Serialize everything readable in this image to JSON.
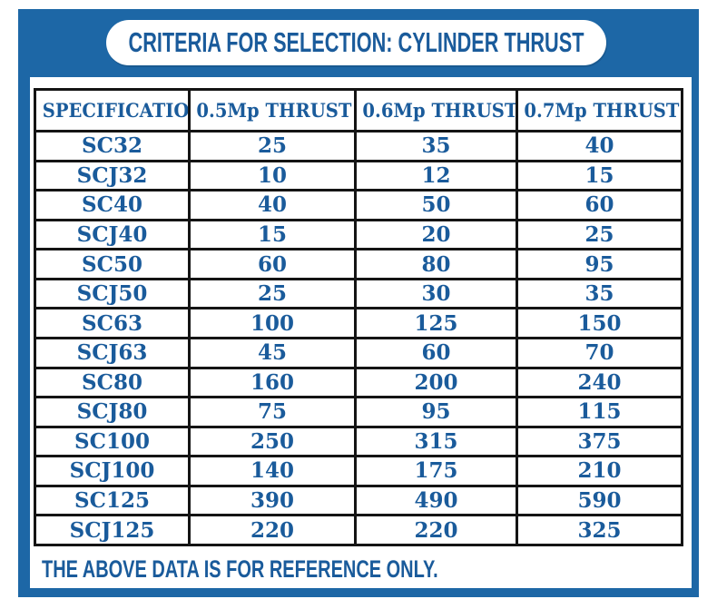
{
  "header": {
    "title": "CRITERIA FOR SELECTION: CYLINDER THRUST"
  },
  "table": {
    "headers": [
      "SPECIFICATION",
      "0.5Mp THRUST",
      "0.6Mp THRUST",
      "0.7Mp THRUST"
    ],
    "rows": [
      [
        "SC32",
        "25",
        "35",
        "40"
      ],
      [
        "SCJ32",
        "10",
        "12",
        "15"
      ],
      [
        "SC40",
        "40",
        "50",
        "60"
      ],
      [
        "SCJ40",
        "15",
        "20",
        "25"
      ],
      [
        "SC50",
        "60",
        "80",
        "95"
      ],
      [
        "SCJ50",
        "25",
        "30",
        "35"
      ],
      [
        "SC63",
        "100",
        "125",
        "150"
      ],
      [
        "SCJ63",
        "45",
        "60",
        "70"
      ],
      [
        "SC80",
        "160",
        "200",
        "240"
      ],
      [
        "SCJ80",
        "75",
        "95",
        "115"
      ],
      [
        "SC100",
        "250",
        "315",
        "375"
      ],
      [
        "SCJ100",
        "140",
        "175",
        "210"
      ],
      [
        "SC125",
        "390",
        "490",
        "590"
      ],
      [
        "SCJ125",
        "220",
        "220",
        "325"
      ]
    ]
  },
  "footer": {
    "note": "THE ABOVE DATA IS FOR REFERENCE ONLY."
  },
  "colors": {
    "frame_blue": "#1d67a6",
    "text_blue": "#1a5b9b",
    "border_black": "#141414"
  }
}
